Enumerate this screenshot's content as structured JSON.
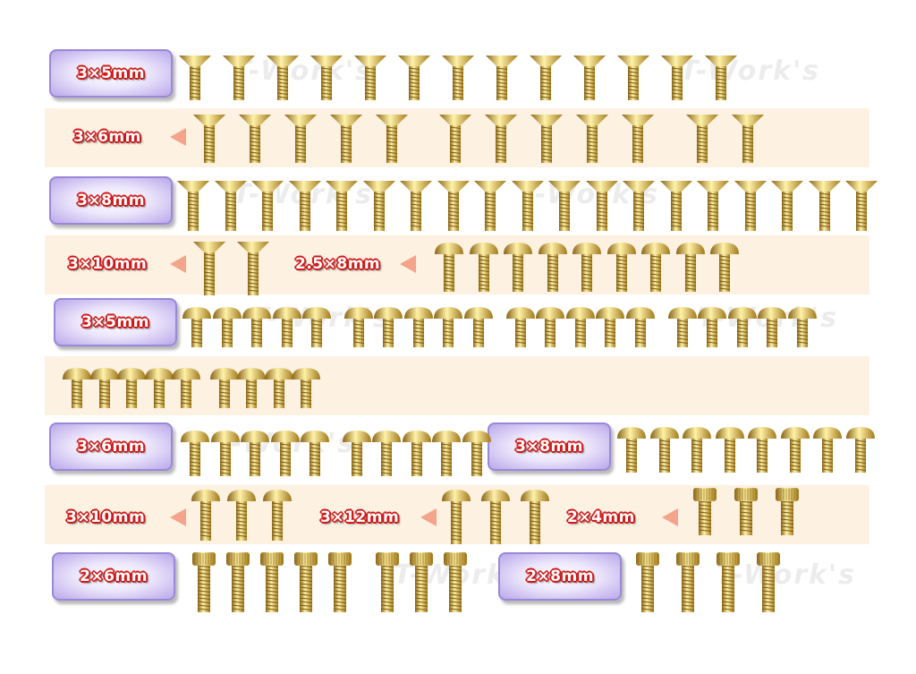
{
  "watermark": "T-Work's",
  "colors": {
    "label_text": "#ffffff",
    "label_outline": "#d01818",
    "pill_border": "#9b87d8",
    "band": "#fdf1e2",
    "arrow": "#f3a48a",
    "gold": "#d4a72c"
  },
  "rows": [
    {
      "style": "pill",
      "groups": [
        {
          "label": "3×5mm",
          "head": "flat",
          "count": 13
        }
      ]
    },
    {
      "style": "band",
      "groups": [
        {
          "label": "3×6mm",
          "arrow": true,
          "head": "flat",
          "count": 12
        }
      ]
    },
    {
      "style": "pill",
      "groups": [
        {
          "label": "3×8mm",
          "head": "flat",
          "count": 19
        }
      ]
    },
    {
      "style": "band",
      "groups": [
        {
          "label": "3×10mm",
          "arrow": true,
          "head": "flat",
          "count": 2
        },
        {
          "label": "2.5×8mm",
          "arrow": true,
          "head": "button",
          "count": 9
        }
      ]
    },
    {
      "style": "pill",
      "groups": [
        {
          "label": "3×5mm",
          "head": "button",
          "count": 20
        }
      ]
    },
    {
      "style": "band",
      "groups": [
        {
          "label": "",
          "head": "button",
          "count": 9
        }
      ]
    },
    {
      "style": "pill",
      "groups": [
        {
          "label": "3×6mm",
          "head": "button",
          "count": 10
        },
        {
          "label": "3×8mm",
          "head": "button",
          "count": 8
        }
      ]
    },
    {
      "style": "band",
      "groups": [
        {
          "label": "3×10mm",
          "arrow": true,
          "head": "button",
          "count": 3
        },
        {
          "label": "3×12mm",
          "arrow": true,
          "head": "button",
          "count": 3
        },
        {
          "label": "2×4mm",
          "arrow": true,
          "head": "knurled",
          "count": 3
        }
      ]
    },
    {
      "style": "pill",
      "groups": [
        {
          "label": "2×6mm",
          "head": "knurled",
          "count": 8
        },
        {
          "label": "2×8mm",
          "head": "knurled",
          "count": 4
        }
      ]
    }
  ]
}
